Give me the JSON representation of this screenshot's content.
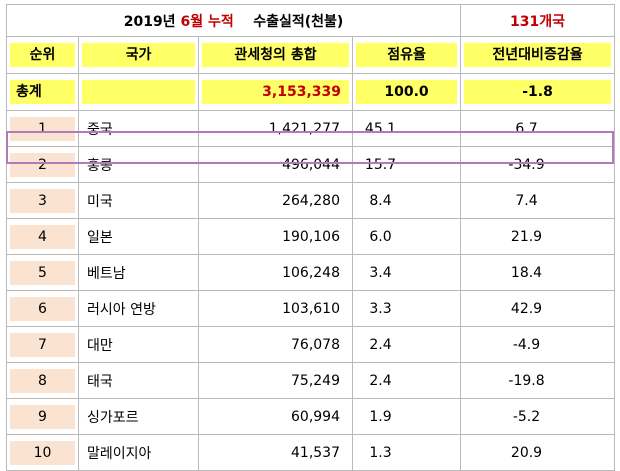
{
  "title": {
    "year": "2019년",
    "month": "6월",
    "cumulative": "누적",
    "label": "수출실적(천불)",
    "country_count": "131개국"
  },
  "columns": [
    "순위",
    "국가",
    "관세청의 총합",
    "점유율",
    "전년대비증감율"
  ],
  "total": {
    "label": "총계",
    "country": "",
    "amount": "3,153,339",
    "share": "100.0",
    "change": "-1.8"
  },
  "rows": [
    {
      "rank": "1",
      "country": "중국",
      "amount": "1,421,277",
      "share": "45.1",
      "change": "6.7"
    },
    {
      "rank": "2",
      "country": "홍콩",
      "amount": "496,044",
      "share": "15.7",
      "change": "-34.9"
    },
    {
      "rank": "3",
      "country": "미국",
      "amount": "264,280",
      "share": "8.4",
      "change": "7.4"
    },
    {
      "rank": "4",
      "country": "일본",
      "amount": "190,106",
      "share": "6.0",
      "change": "21.9"
    },
    {
      "rank": "5",
      "country": "베트남",
      "amount": "106,248",
      "share": "3.4",
      "change": "18.4"
    },
    {
      "rank": "6",
      "country": "러시아 연방",
      "amount": "103,610",
      "share": "3.3",
      "change": "42.9"
    },
    {
      "rank": "7",
      "country": "대만",
      "amount": "76,078",
      "share": "2.4",
      "change": "-4.9"
    },
    {
      "rank": "8",
      "country": "태국",
      "amount": "75,249",
      "share": "2.4",
      "change": "-19.8"
    },
    {
      "rank": "9",
      "country": "싱가포르",
      "amount": "60,994",
      "share": "1.9",
      "change": "-5.2"
    },
    {
      "rank": "10",
      "country": "말레이지아",
      "amount": "41,537",
      "share": "1.3",
      "change": "20.9"
    }
  ],
  "colors": {
    "highlight": "#ffff66",
    "rank_fill": "#fbe3d1",
    "red_text": "#c00000",
    "selection_outline": "#b37ab8"
  }
}
